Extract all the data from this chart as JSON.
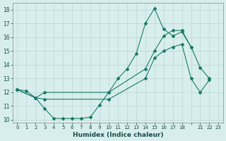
{
  "xlabel": "Humidex (Indice chaleur)",
  "bg_color": "#d8eeee",
  "grid_color": "#c0d8d8",
  "line_color": "#1a7a6a",
  "ylim": [
    9.8,
    18.5
  ],
  "yticks": [
    10,
    11,
    12,
    13,
    14,
    15,
    16,
    17,
    18
  ],
  "xtick_labels": [
    "0",
    "1",
    "2",
    "3",
    "4",
    "5",
    "6",
    "7",
    "8",
    "9",
    "10",
    "11",
    "12",
    "13",
    "14",
    "15",
    "16",
    "17",
    "18",
    "",
    "21",
    "22",
    "23"
  ],
  "line1_x": [
    0,
    1,
    2,
    3,
    4,
    5,
    6,
    7,
    8,
    9,
    10,
    11,
    12,
    13,
    14,
    15,
    16,
    17,
    18,
    20
  ],
  "line1_y": [
    12.2,
    12.1,
    11.6,
    10.8,
    10.1,
    10.1,
    10.1,
    10.1,
    10.2,
    11.1,
    12.0,
    13.0,
    13.7,
    14.8,
    17.0,
    18.1,
    16.6,
    16.1,
    16.4,
    15.3
  ],
  "line2_x": [
    0,
    2,
    3,
    10,
    14,
    15,
    16,
    17,
    18,
    20,
    21,
    22
  ],
  "line2_y": [
    12.2,
    11.6,
    12.0,
    12.0,
    13.7,
    15.0,
    16.1,
    16.5,
    16.5,
    15.3,
    13.8,
    13.0
  ],
  "line3_x": [
    0,
    2,
    3,
    10,
    14,
    15,
    16,
    17,
    18,
    20,
    21,
    22
  ],
  "line3_y": [
    12.2,
    11.6,
    11.5,
    11.5,
    13.0,
    14.5,
    15.0,
    15.3,
    15.5,
    13.0,
    12.0,
    12.9
  ]
}
